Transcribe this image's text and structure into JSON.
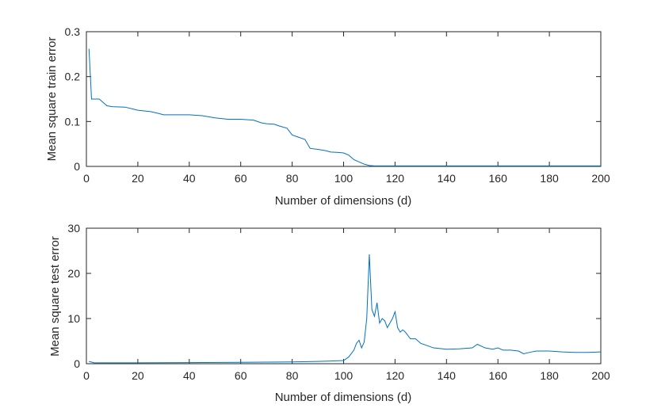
{
  "chart_data": [
    {
      "type": "line",
      "title": "",
      "xlabel": "Number of dimensions (d)",
      "ylabel": "Mean square train error",
      "xlim": [
        0,
        200
      ],
      "ylim": [
        0,
        0.3
      ],
      "xticks": [
        0,
        20,
        40,
        60,
        80,
        100,
        120,
        140,
        160,
        180,
        200
      ],
      "yticks": [
        0,
        0.1,
        0.2,
        0.3
      ],
      "grid": false,
      "color": "#0072bd",
      "series": [
        {
          "x": [
            1,
            2,
            3,
            5,
            6,
            8,
            10,
            15,
            18,
            20,
            25,
            28,
            30,
            35,
            40,
            45,
            48,
            50,
            55,
            60,
            65,
            68,
            70,
            73,
            75,
            78,
            80,
            82,
            85,
            87,
            90,
            93,
            95,
            98,
            100,
            102,
            104,
            106,
            108,
            110,
            112,
            120,
            140,
            160,
            180,
            200
          ],
          "values": [
            0.262,
            0.15,
            0.15,
            0.15,
            0.145,
            0.135,
            0.133,
            0.132,
            0.128,
            0.125,
            0.122,
            0.118,
            0.115,
            0.115,
            0.115,
            0.113,
            0.11,
            0.108,
            0.105,
            0.105,
            0.103,
            0.097,
            0.095,
            0.094,
            0.09,
            0.085,
            0.07,
            0.066,
            0.06,
            0.04,
            0.038,
            0.035,
            0.032,
            0.031,
            0.03,
            0.025,
            0.015,
            0.01,
            0.005,
            0.002,
            0.001,
            0.001,
            0.001,
            0.001,
            0.001,
            0.001
          ]
        }
      ]
    },
    {
      "type": "line",
      "title": "",
      "xlabel": "Number of dimensions (d)",
      "ylabel": "Mean square test error",
      "xlim": [
        0,
        200
      ],
      "ylim": [
        0,
        30
      ],
      "xticks": [
        0,
        20,
        40,
        60,
        80,
        100,
        120,
        140,
        160,
        180,
        200
      ],
      "yticks": [
        0,
        10,
        20,
        30
      ],
      "grid": false,
      "color": "#0072bd",
      "series": [
        {
          "x": [
            1,
            3,
            10,
            20,
            40,
            60,
            80,
            90,
            95,
            100,
            102,
            104,
            105,
            106,
            107,
            108,
            109,
            110,
            111,
            112,
            113,
            114,
            115,
            116,
            117,
            118,
            119,
            120,
            121,
            122,
            123,
            124,
            126,
            128,
            130,
            135,
            140,
            145,
            150,
            152,
            155,
            158,
            160,
            162,
            165,
            168,
            170,
            173,
            175,
            180,
            185,
            190,
            195,
            200
          ],
          "values": [
            0.5,
            0.2,
            0.2,
            0.2,
            0.25,
            0.3,
            0.4,
            0.5,
            0.6,
            0.7,
            1.5,
            3.0,
            4.5,
            5.2,
            3.5,
            4.8,
            10.0,
            24.2,
            12.0,
            10.5,
            13.5,
            9.0,
            10.0,
            9.5,
            8.0,
            9.0,
            10.0,
            11.5,
            8.0,
            7.0,
            7.5,
            7.0,
            5.5,
            5.5,
            4.5,
            3.5,
            3.2,
            3.3,
            3.5,
            4.3,
            3.5,
            3.2,
            3.5,
            3.0,
            3.0,
            2.8,
            2.2,
            2.6,
            2.8,
            2.8,
            2.6,
            2.5,
            2.5,
            2.6
          ]
        }
      ]
    }
  ]
}
